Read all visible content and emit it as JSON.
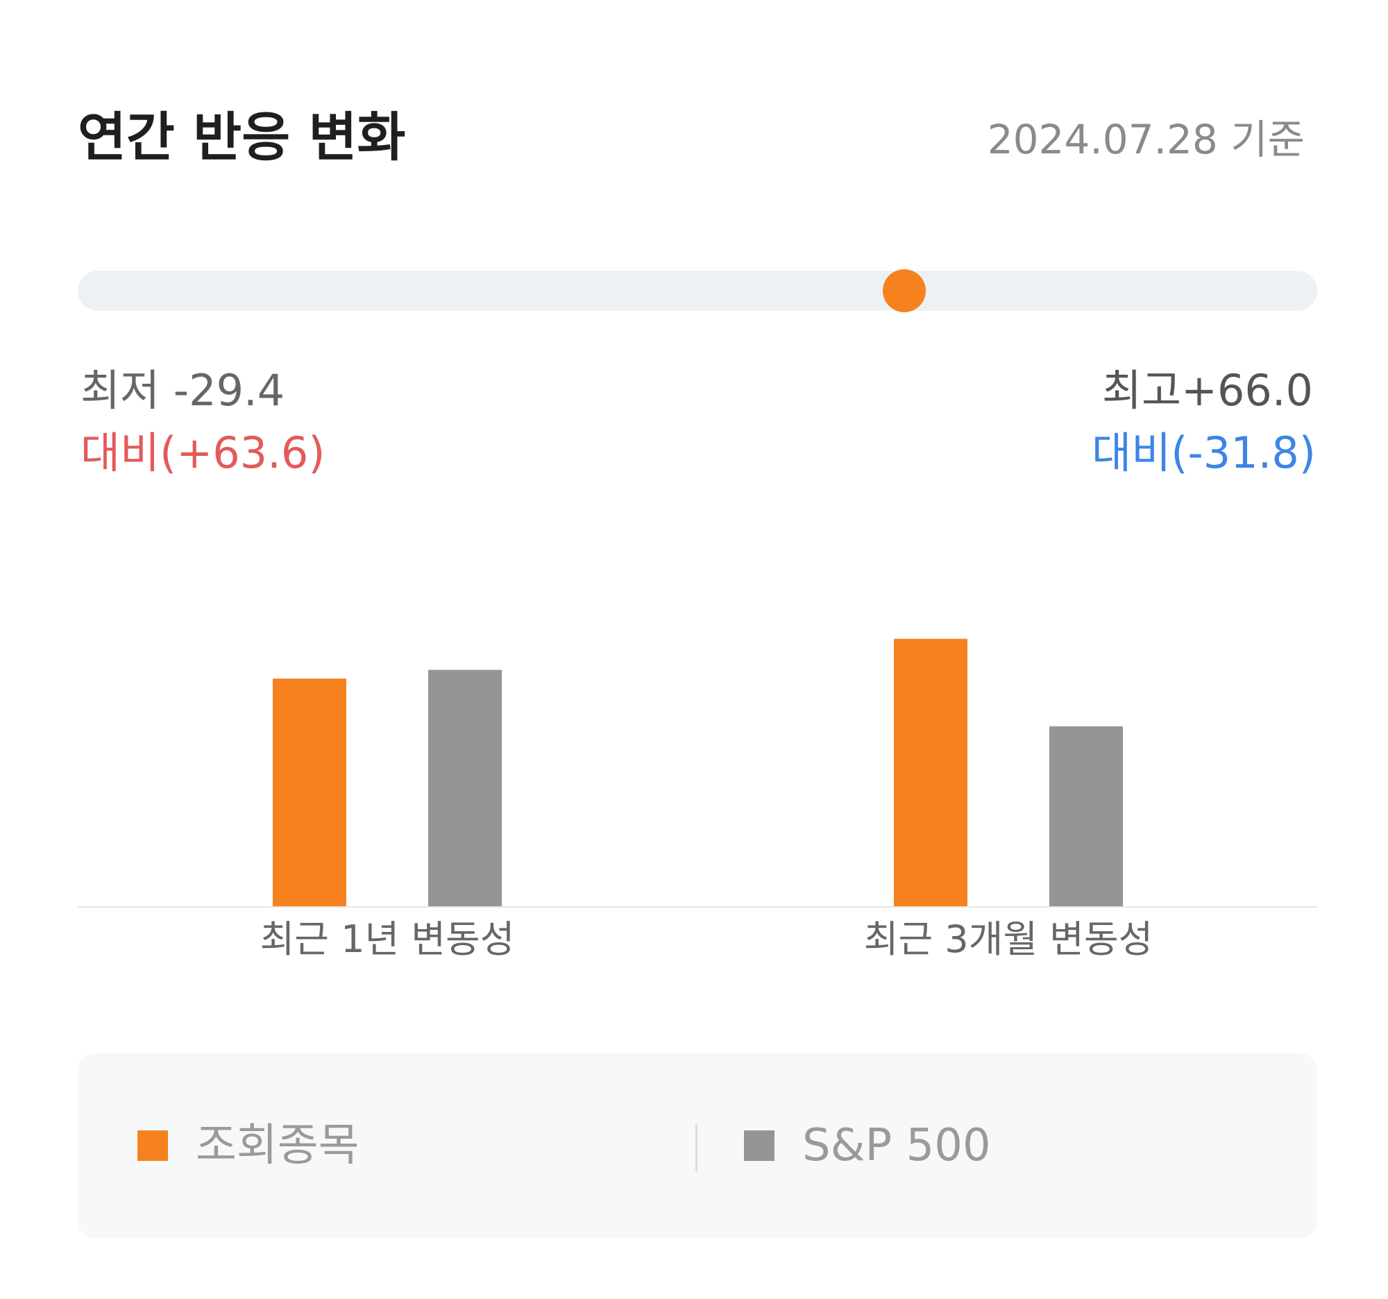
{
  "header": {
    "title": "연간 반응 변화",
    "as_of": "2024.07.28 기준"
  },
  "range": {
    "low_label": "최저 -29.4",
    "low_diff": "대비(+63.6)",
    "high_label": "최고+66.0",
    "high_diff": "대비(-31.8)",
    "min": -29.4,
    "max": 66.0,
    "current": 34.2,
    "track_color": "#eef1f4",
    "thumb_color": "#f5821f"
  },
  "chart_data": {
    "type": "bar",
    "categories": [
      "최근 1년 변동성",
      "최근 3개월 변동성"
    ],
    "series": [
      {
        "name": "조회종목",
        "color": "#f5821f",
        "values": [
          31.5,
          37.0
        ]
      },
      {
        "name": "S&P 500",
        "color": "#949696",
        "values": [
          32.7,
          24.9
        ]
      }
    ],
    "ylim": [
      0,
      48
    ],
    "grid": false,
    "legend_position": "bottom"
  }
}
